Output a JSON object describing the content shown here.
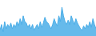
{
  "chart_data": {
    "type": "area",
    "values": [
      4,
      8,
      3,
      10,
      5,
      8,
      6,
      9,
      5,
      8,
      6,
      10,
      7,
      12,
      8,
      14,
      10,
      9,
      6,
      8,
      5,
      8,
      4,
      6,
      8,
      5,
      10,
      6,
      9,
      13,
      10,
      9,
      7,
      5,
      8,
      12,
      9,
      7,
      14,
      10,
      20,
      14,
      10,
      8,
      11,
      8,
      14,
      11,
      8,
      12,
      9,
      7,
      5,
      4,
      7,
      5,
      8,
      6,
      10,
      6,
      12,
      8,
      5
    ],
    "color": "#4baee8",
    "ylim": [
      0,
      25
    ],
    "grid": false,
    "tick_labels": false
  }
}
